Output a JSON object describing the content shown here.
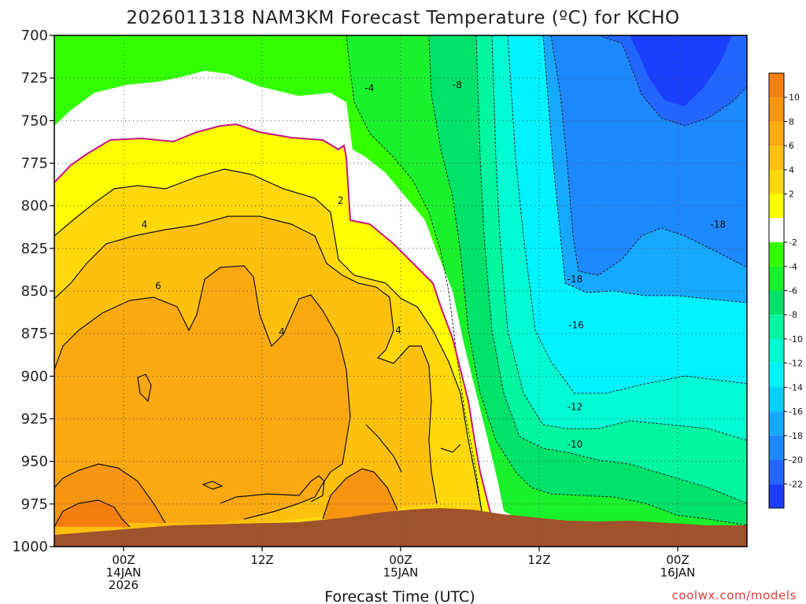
{
  "title": "2026011318 NAM3KM Forecast Temperature (ºC) for KCHO",
  "credit": "coolwx.com/models",
  "colors": {
    "ground": "#a0522d",
    "freezing_line": "#c71585",
    "zero_to_neg2": "#ffffff"
  },
  "chart_data": {
    "type": "heatmap",
    "title": "2026011318 NAM3KM Forecast Temperature (ºC) for KCHO",
    "xlabel": "Forecast Time (UTC)",
    "ylabel": "",
    "x_tick_labels": [
      {
        "hour": 6,
        "lines": [
          "00Z",
          "14JAN",
          "2026"
        ]
      },
      {
        "hour": 18,
        "lines": [
          "12Z"
        ]
      },
      {
        "hour": 30,
        "lines": [
          "00Z",
          "15JAN"
        ]
      },
      {
        "hour": 42,
        "lines": [
          "12Z"
        ]
      },
      {
        "hour": 54,
        "lines": [
          "00Z",
          "16JAN"
        ]
      }
    ],
    "xlim_hours_since_init": [
      0,
      60
    ],
    "y_pressure_levels_hpa": [
      700,
      725,
      750,
      775,
      800,
      825,
      850,
      875,
      900,
      925,
      950,
      975,
      1000
    ],
    "ylim": [
      1000,
      700
    ],
    "grid": true,
    "colorbar": {
      "ticks": [
        10,
        8,
        6,
        4,
        2,
        -2,
        -4,
        -6,
        -8,
        -10,
        -12,
        -14,
        -16,
        -18,
        -20,
        -22
      ],
      "bins": [
        {
          "from": 10,
          "to": 12,
          "color": "#f57f0e"
        },
        {
          "from": 8,
          "to": 10,
          "color": "#f79410"
        },
        {
          "from": 6,
          "to": 8,
          "color": "#fba911"
        },
        {
          "from": 4,
          "to": 6,
          "color": "#fec00f"
        },
        {
          "from": 2,
          "to": 4,
          "color": "#ffd80b"
        },
        {
          "from": 0,
          "to": 2,
          "color": "#ffff00"
        },
        {
          "from": -2,
          "to": 0,
          "color": "#ffffff"
        },
        {
          "from": -4,
          "to": -2,
          "color": "#32ff00"
        },
        {
          "from": -6,
          "to": -4,
          "color": "#19f12c"
        },
        {
          "from": -8,
          "to": -6,
          "color": "#00e26a"
        },
        {
          "from": -10,
          "to": -8,
          "color": "#00f5a0"
        },
        {
          "from": -12,
          "to": -10,
          "color": "#00fbd2"
        },
        {
          "from": -14,
          "to": -12,
          "color": "#00f2ff"
        },
        {
          "from": -16,
          "to": -14,
          "color": "#00d2ff"
        },
        {
          "from": -18,
          "to": -16,
          "color": "#16a9ff"
        },
        {
          "from": -20,
          "to": -18,
          "color": "#1e88ff"
        },
        {
          "from": -22,
          "to": -20,
          "color": "#2266ff"
        },
        {
          "from": -24,
          "to": -22,
          "color": "#1b3fff"
        }
      ]
    },
    "contour_labels": [
      {
        "text": "-4",
        "hour": 27.3,
        "p": 731
      },
      {
        "text": "-8",
        "hour": 34.9,
        "p": 729
      },
      {
        "text": "2",
        "hour": 24.8,
        "p": 797
      },
      {
        "text": "4",
        "hour": 7.8,
        "p": 811
      },
      {
        "text": "6",
        "hour": 9.0,
        "p": 847
      },
      {
        "text": "4",
        "hour": 29.8,
        "p": 873
      },
      {
        "text": "4",
        "hour": 19.7,
        "p": 874
      },
      {
        "text": "-18",
        "hour": 57.5,
        "p": 811
      },
      {
        "text": "-18",
        "hour": 45.1,
        "p": 843
      },
      {
        "text": "-16",
        "hour": 45.2,
        "p": 870
      },
      {
        "text": "-12",
        "hour": 45.1,
        "p": 918
      },
      {
        "text": "-10",
        "hour": 45.1,
        "p": 940
      }
    ]
  }
}
